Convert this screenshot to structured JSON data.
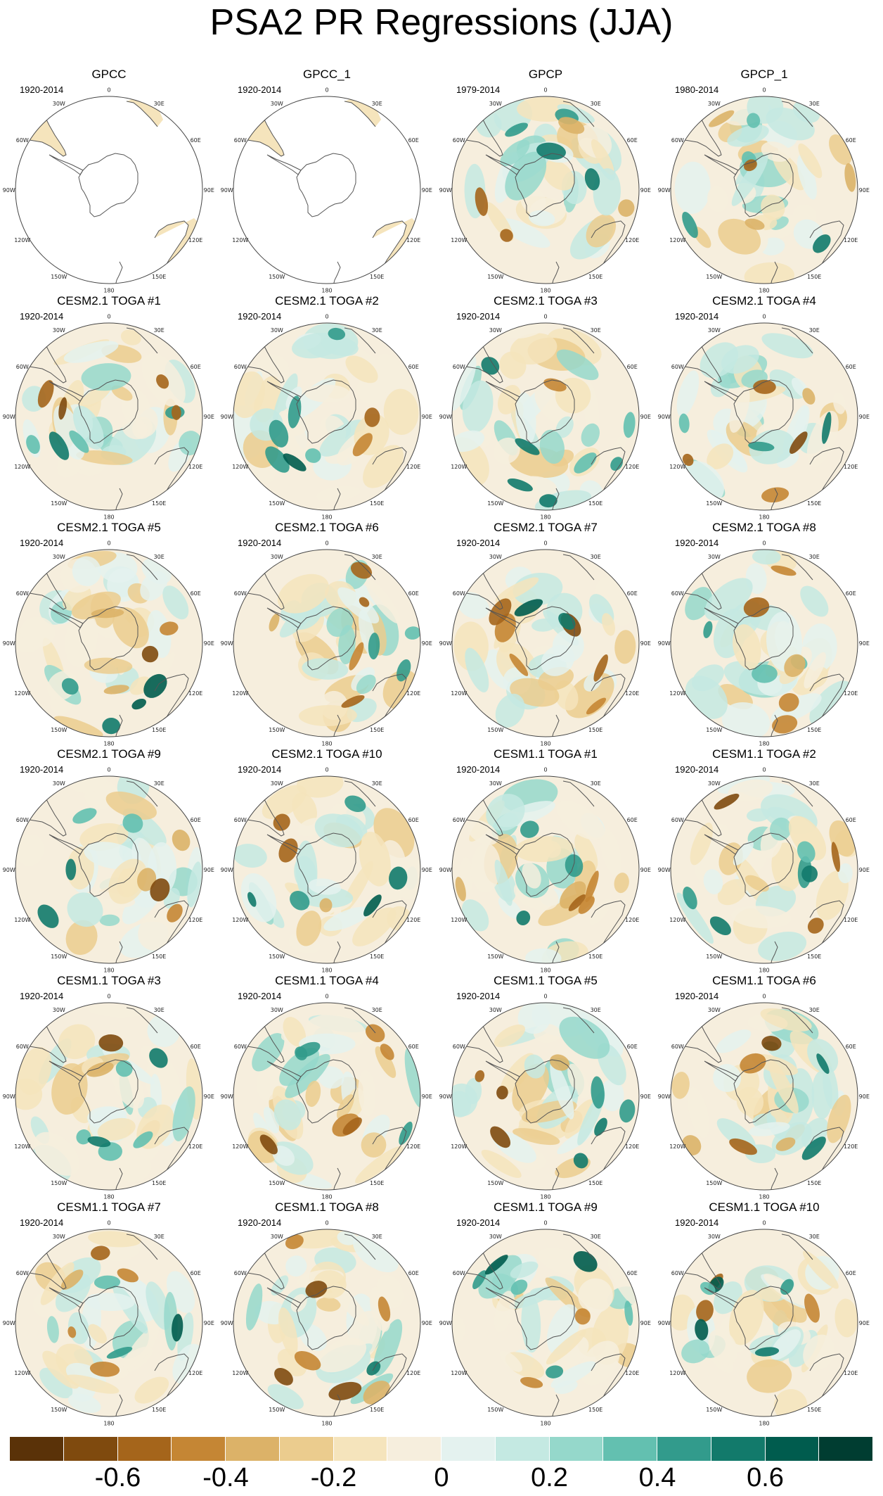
{
  "figure": {
    "title": "PSA2 PR Regressions (JJA)",
    "panels": [
      {
        "title": "GPCC",
        "period": "1920-2014",
        "coverage": "partial"
      },
      {
        "title": "GPCC_1",
        "period": "1920-2014",
        "coverage": "partial"
      },
      {
        "title": "GPCP",
        "period": "1979-2014",
        "coverage": "full"
      },
      {
        "title": "GPCP_1",
        "period": "1980-2014",
        "coverage": "full"
      },
      {
        "title": "CESM2.1 TOGA #1",
        "period": "1920-2014",
        "coverage": "full"
      },
      {
        "title": "CESM2.1 TOGA #2",
        "period": "1920-2014",
        "coverage": "full"
      },
      {
        "title": "CESM2.1 TOGA #3",
        "period": "1920-2014",
        "coverage": "full"
      },
      {
        "title": "CESM2.1 TOGA #4",
        "period": "1920-2014",
        "coverage": "full"
      },
      {
        "title": "CESM2.1 TOGA #5",
        "period": "1920-2014",
        "coverage": "full"
      },
      {
        "title": "CESM2.1 TOGA #6",
        "period": "1920-2014",
        "coverage": "full"
      },
      {
        "title": "CESM2.1 TOGA #7",
        "period": "1920-2014",
        "coverage": "full"
      },
      {
        "title": "CESM2.1 TOGA #8",
        "period": "1920-2014",
        "coverage": "full"
      },
      {
        "title": "CESM2.1 TOGA #9",
        "period": "1920-2014",
        "coverage": "full"
      },
      {
        "title": "CESM2.1 TOGA #10",
        "period": "1920-2014",
        "coverage": "full"
      },
      {
        "title": "CESM1.1 TOGA #1",
        "period": "1920-2014",
        "coverage": "full"
      },
      {
        "title": "CESM1.1 TOGA #2",
        "period": "1920-2014",
        "coverage": "full"
      },
      {
        "title": "CESM1.1 TOGA #3",
        "period": "1920-2014",
        "coverage": "full"
      },
      {
        "title": "CESM1.1 TOGA #4",
        "period": "1920-2014",
        "coverage": "full"
      },
      {
        "title": "CESM1.1 TOGA #5",
        "period": "1920-2014",
        "coverage": "full"
      },
      {
        "title": "CESM1.1 TOGA #6",
        "period": "1920-2014",
        "coverage": "full"
      },
      {
        "title": "CESM1.1 TOGA #7",
        "period": "1920-2014",
        "coverage": "full"
      },
      {
        "title": "CESM1.1 TOGA #8",
        "period": "1920-2014",
        "coverage": "full"
      },
      {
        "title": "CESM1.1 TOGA #9",
        "period": "1920-2014",
        "coverage": "full"
      },
      {
        "title": "CESM1.1 TOGA #10",
        "period": "1920-2014",
        "coverage": "full"
      }
    ],
    "map": {
      "projection": "south-polar-stereographic",
      "longitude_labels": [
        {
          "text": "0",
          "lon": 0
        },
        {
          "text": "30E",
          "lon": 30
        },
        {
          "text": "60E",
          "lon": 60
        },
        {
          "text": "90E",
          "lon": 90
        },
        {
          "text": "120E",
          "lon": 120
        },
        {
          "text": "150E",
          "lon": 150
        },
        {
          "text": "180",
          "lon": 180
        },
        {
          "text": "150W",
          "lon": -150
        },
        {
          "text": "120W",
          "lon": -120
        },
        {
          "text": "90W",
          "lon": -90
        },
        {
          "text": "60W",
          "lon": -60
        },
        {
          "text": "30W",
          "lon": -30
        }
      ]
    },
    "colorbar": {
      "colors": [
        "#5a3208",
        "#7f4a0e",
        "#a5651b",
        "#c58634",
        "#dcb268",
        "#ebcc8e",
        "#f5e4bc",
        "#f6eedd",
        "#e4f2ef",
        "#c4e9e2",
        "#95d8cb",
        "#63c0b0",
        "#329b8c",
        "#127a6b",
        "#005c4e",
        "#003d31"
      ],
      "ticks": [
        {
          "label": "-0.6",
          "value": -0.6
        },
        {
          "label": "-0.4",
          "value": -0.4
        },
        {
          "label": "-0.2",
          "value": -0.2
        },
        {
          "label": "0",
          "value": 0
        },
        {
          "label": "0.2",
          "value": 0.2
        },
        {
          "label": "0.4",
          "value": 0.4
        },
        {
          "label": "0.6",
          "value": 0.6
        }
      ],
      "range": [
        -0.8,
        0.8
      ],
      "interval": 0.1
    }
  }
}
